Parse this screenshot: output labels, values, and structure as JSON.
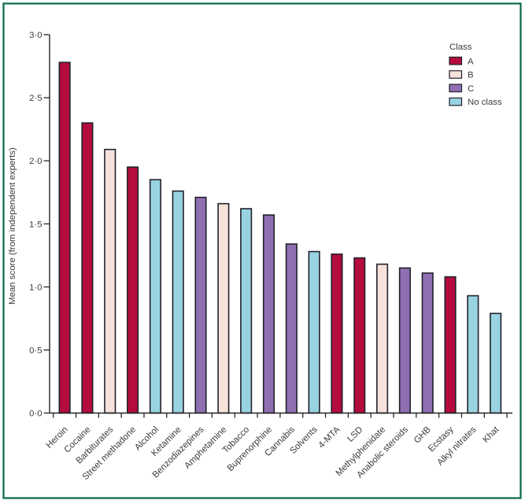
{
  "figure": {
    "frame_color": "#066b42",
    "background_color": "#ffffff"
  },
  "chart_data": {
    "type": "bar",
    "title": "",
    "xlabel": "",
    "ylabel": "Mean score (from independent experts)",
    "ylim": [
      0,
      3
    ],
    "ytick_step": 0.5,
    "ytick_labels": [
      "0·0",
      "0·5",
      "1·0",
      "1·5",
      "2·0",
      "2·5",
      "3·0"
    ],
    "grid": false,
    "categories": [
      "Heroin",
      "Cocaine",
      "Barbiturates",
      "Street methadone",
      "Alcohol",
      "Ketamine",
      "Benzodiazepines",
      "Amphetamine",
      "Tobacco",
      "Buprenorphine",
      "Cannabis",
      "Solvents",
      "4-MTA",
      "LSD",
      "Methylphenidate",
      "Anabolic steroids",
      "GHB",
      "Ecstasy",
      "Alkyl nitrates",
      "Khat"
    ],
    "values": [
      2.78,
      2.3,
      2.09,
      1.95,
      1.85,
      1.76,
      1.71,
      1.66,
      1.62,
      1.57,
      1.34,
      1.28,
      1.26,
      1.23,
      1.18,
      1.15,
      1.11,
      1.08,
      0.93,
      0.79
    ],
    "classes": [
      "A",
      "A",
      "B",
      "A",
      "No class",
      "No class",
      "C",
      "B",
      "No class",
      "C",
      "C",
      "No class",
      "A",
      "A",
      "B",
      "C",
      "C",
      "A",
      "No class",
      "No class"
    ],
    "class_colors": {
      "A": "#b30c3d",
      "B": "#f6e1db",
      "C": "#8f6fb2",
      "No class": "#99d3e2"
    },
    "bar_outline_color": "#21212b",
    "axis_color": "#262626",
    "text_color": "#3c3c3c",
    "legend": {
      "title": "Class",
      "position": "top-right",
      "entries": [
        {
          "label": "A",
          "color": "#b30c3d"
        },
        {
          "label": "B",
          "color": "#f6e1db"
        },
        {
          "label": "C",
          "color": "#8f6fb2"
        },
        {
          "label": "No class",
          "color": "#99d3e2"
        }
      ]
    }
  }
}
